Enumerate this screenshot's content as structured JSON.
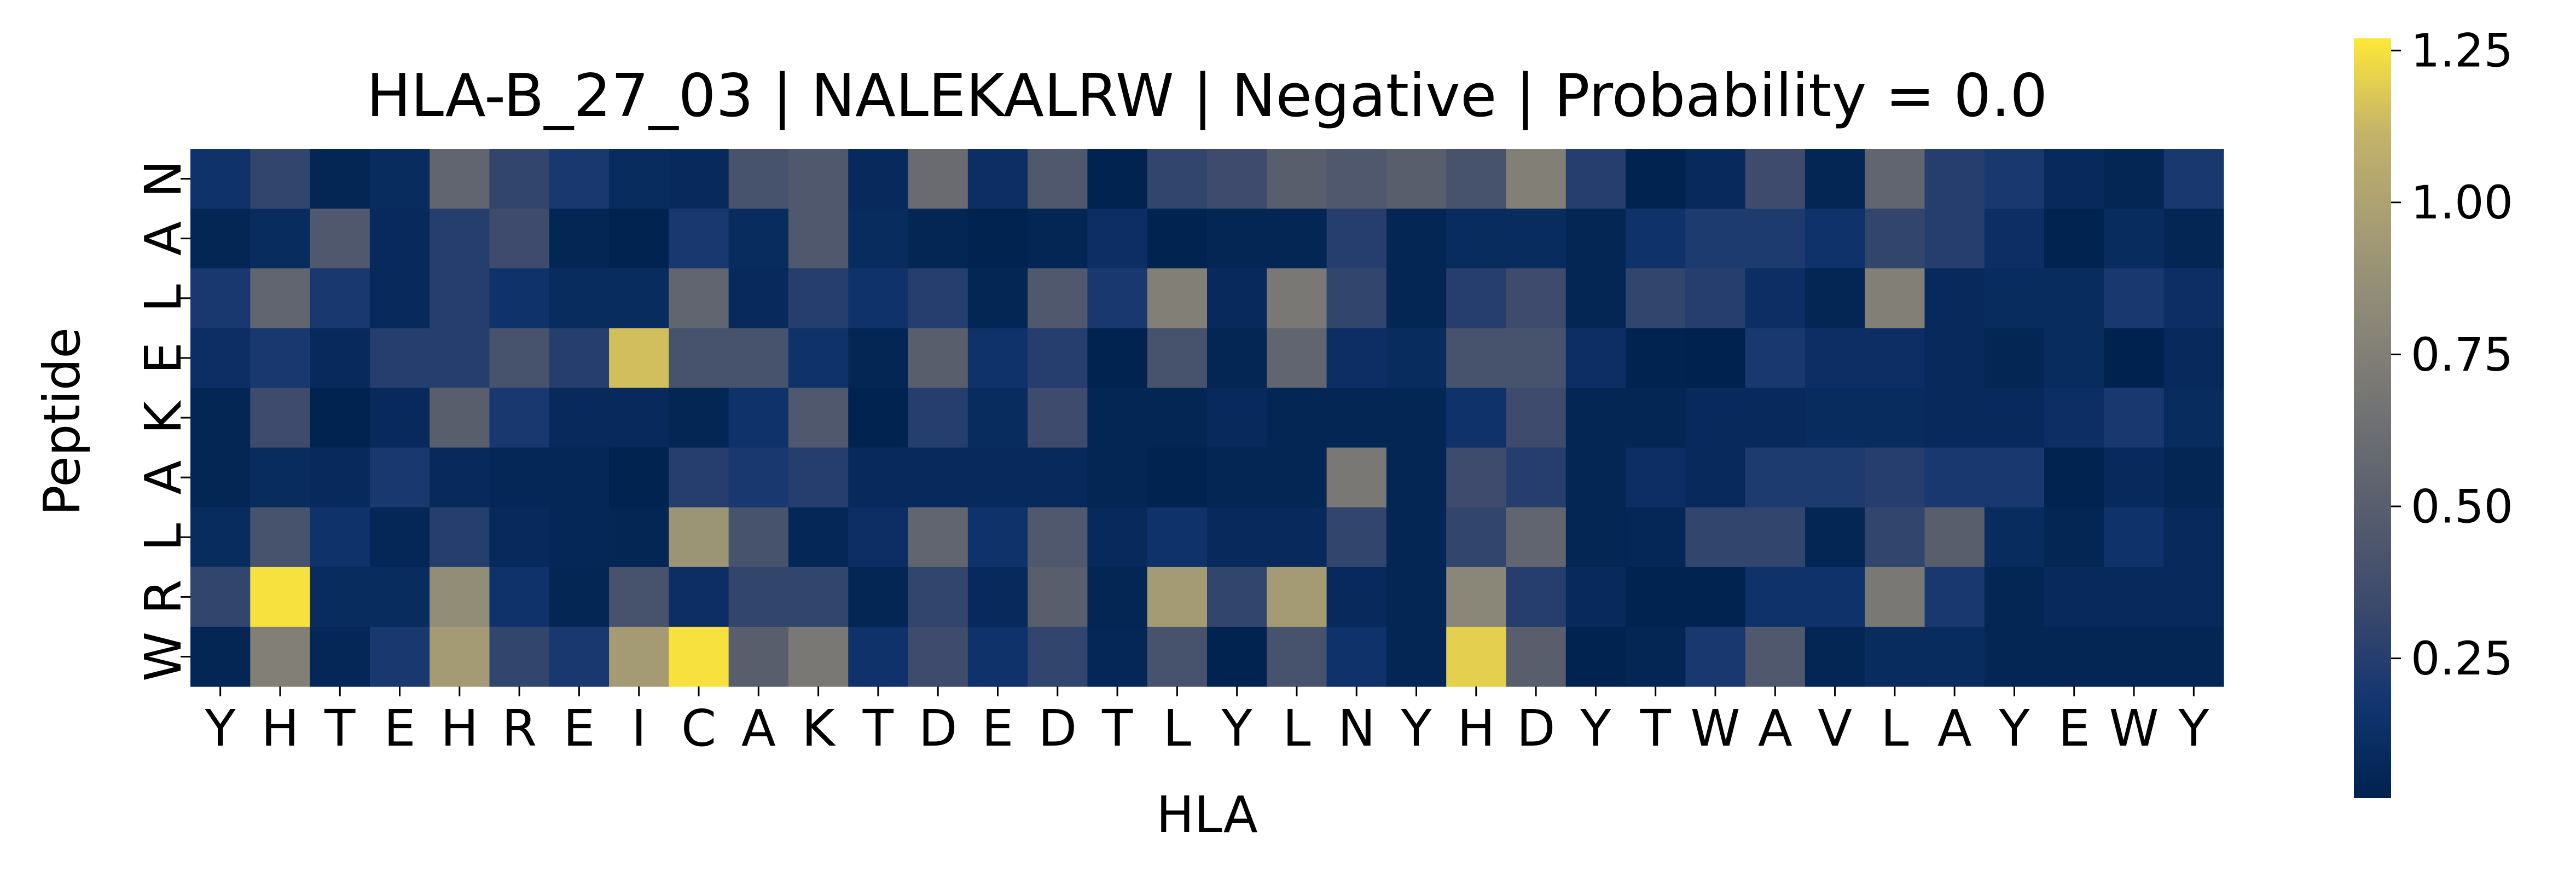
{
  "chart_data": {
    "type": "heatmap",
    "title": "HLA-B_27_03 | NALEKALRW | Negative | Probability = 0.0",
    "xlabel": "HLA",
    "ylabel": "Peptide",
    "x_categories": [
      "Y",
      "H",
      "T",
      "E",
      "H",
      "R",
      "E",
      "I",
      "C",
      "A",
      "K",
      "T",
      "D",
      "E",
      "D",
      "T",
      "L",
      "Y",
      "L",
      "N",
      "Y",
      "H",
      "D",
      "Y",
      "T",
      "W",
      "A",
      "V",
      "L",
      "A",
      "Y",
      "E",
      "W",
      "Y"
    ],
    "y_categories": [
      "N",
      "A",
      "L",
      "E",
      "K",
      "A",
      "L",
      "R",
      "W"
    ],
    "values": [
      [
        0.15,
        0.3,
        0.05,
        0.1,
        0.55,
        0.3,
        0.2,
        0.1,
        0.08,
        0.4,
        0.45,
        0.08,
        0.6,
        0.12,
        0.45,
        0.03,
        0.3,
        0.35,
        0.5,
        0.45,
        0.5,
        0.4,
        0.75,
        0.25,
        0.03,
        0.08,
        0.35,
        0.05,
        0.55,
        0.25,
        0.2,
        0.08,
        0.05,
        0.2
      ],
      [
        0.05,
        0.1,
        0.45,
        0.08,
        0.25,
        0.35,
        0.05,
        0.03,
        0.2,
        0.1,
        0.45,
        0.1,
        0.05,
        0.03,
        0.05,
        0.12,
        0.03,
        0.05,
        0.05,
        0.25,
        0.05,
        0.1,
        0.1,
        0.05,
        0.15,
        0.22,
        0.22,
        0.15,
        0.3,
        0.25,
        0.12,
        0.03,
        0.1,
        0.05
      ],
      [
        0.2,
        0.55,
        0.2,
        0.08,
        0.25,
        0.15,
        0.1,
        0.1,
        0.55,
        0.08,
        0.25,
        0.15,
        0.25,
        0.05,
        0.45,
        0.2,
        0.75,
        0.08,
        0.7,
        0.3,
        0.05,
        0.25,
        0.35,
        0.05,
        0.3,
        0.25,
        0.12,
        0.05,
        0.75,
        0.08,
        0.1,
        0.1,
        0.2,
        0.12
      ],
      [
        0.12,
        0.2,
        0.08,
        0.25,
        0.25,
        0.4,
        0.25,
        1.15,
        0.4,
        0.4,
        0.15,
        0.05,
        0.5,
        0.15,
        0.25,
        0.03,
        0.4,
        0.05,
        0.55,
        0.12,
        0.1,
        0.4,
        0.4,
        0.12,
        0.03,
        0.02,
        0.2,
        0.12,
        0.12,
        0.08,
        0.05,
        0.1,
        0.02,
        0.08
      ],
      [
        0.05,
        0.35,
        0.03,
        0.08,
        0.5,
        0.2,
        0.08,
        0.08,
        0.05,
        0.15,
        0.45,
        0.03,
        0.25,
        0.1,
        0.35,
        0.05,
        0.05,
        0.08,
        0.05,
        0.05,
        0.05,
        0.15,
        0.35,
        0.05,
        0.05,
        0.08,
        0.08,
        0.1,
        0.1,
        0.08,
        0.08,
        0.12,
        0.2,
        0.1
      ],
      [
        0.05,
        0.1,
        0.08,
        0.2,
        0.08,
        0.06,
        0.06,
        0.03,
        0.25,
        0.2,
        0.25,
        0.08,
        0.08,
        0.08,
        0.08,
        0.05,
        0.03,
        0.05,
        0.05,
        0.7,
        0.05,
        0.35,
        0.25,
        0.05,
        0.12,
        0.08,
        0.22,
        0.22,
        0.25,
        0.2,
        0.2,
        0.03,
        0.08,
        0.05
      ],
      [
        0.1,
        0.4,
        0.15,
        0.06,
        0.25,
        0.08,
        0.06,
        0.05,
        0.9,
        0.4,
        0.06,
        0.12,
        0.55,
        0.15,
        0.45,
        0.08,
        0.15,
        0.08,
        0.08,
        0.3,
        0.05,
        0.3,
        0.55,
        0.05,
        0.06,
        0.3,
        0.3,
        0.05,
        0.3,
        0.5,
        0.1,
        0.05,
        0.15,
        0.08
      ],
      [
        0.3,
        1.25,
        0.1,
        0.1,
        0.85,
        0.15,
        0.05,
        0.4,
        0.12,
        0.3,
        0.3,
        0.05,
        0.3,
        0.08,
        0.5,
        0.05,
        0.95,
        0.3,
        0.95,
        0.08,
        0.05,
        0.8,
        0.25,
        0.08,
        0.03,
        0.03,
        0.15,
        0.15,
        0.7,
        0.2,
        0.05,
        0.08,
        0.08,
        0.08
      ],
      [
        0.05,
        0.75,
        0.06,
        0.2,
        0.95,
        0.3,
        0.2,
        0.95,
        1.25,
        0.5,
        0.7,
        0.15,
        0.35,
        0.15,
        0.3,
        0.06,
        0.4,
        0.03,
        0.4,
        0.15,
        0.05,
        1.2,
        0.5,
        0.03,
        0.05,
        0.2,
        0.45,
        0.05,
        0.1,
        0.1,
        0.05,
        0.05,
        0.05,
        0.05
      ]
    ],
    "colormap": "cividis",
    "vmin": 0.02,
    "vmax": 1.27,
    "colorbar_ticks": [
      0.25,
      0.5,
      0.75,
      1.0,
      1.25
    ],
    "colorbar_tick_labels": [
      "0.25",
      "0.50",
      "0.75",
      "1.00",
      "1.25"
    ],
    "grid": false,
    "legend": "colorbar-right"
  }
}
